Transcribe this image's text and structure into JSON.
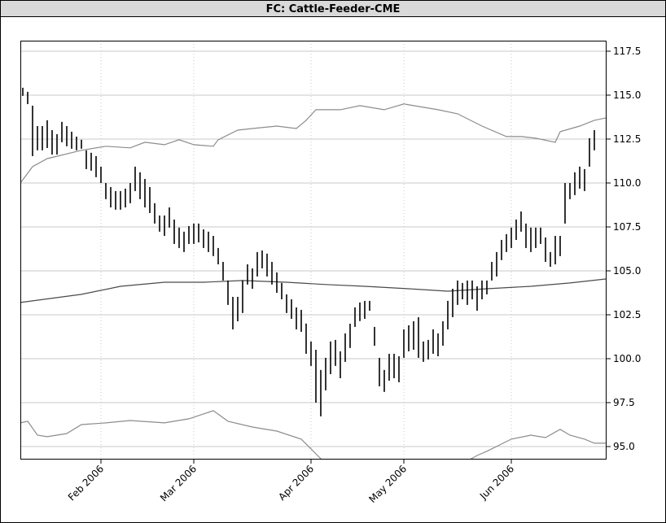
{
  "chart_data": {
    "type": "hilo",
    "title": "FC: Cattle-Feeder-CME",
    "x": [
      0,
      1,
      2,
      3,
      4,
      5,
      6,
      7,
      8,
      9,
      10,
      11,
      12,
      13,
      14,
      15,
      16,
      17,
      18,
      19,
      20,
      21,
      22,
      23,
      24,
      25,
      26,
      27,
      28,
      29,
      30,
      31,
      32,
      33,
      34,
      35,
      36,
      37,
      38,
      39,
      40,
      41,
      42,
      43,
      44,
      45,
      46,
      47,
      48,
      49,
      50,
      51,
      52,
      53,
      54,
      55,
      56,
      57,
      58,
      59,
      60,
      61,
      62,
      63,
      64,
      65,
      66,
      67,
      68,
      69,
      70,
      71,
      72,
      73,
      74,
      75,
      76,
      77,
      78,
      79,
      80,
      81,
      82,
      83,
      84,
      85,
      86,
      87,
      88,
      89,
      90,
      91,
      92,
      93,
      94,
      95,
      96,
      97,
      98,
      99,
      100,
      101,
      102,
      103,
      104,
      105,
      106,
      107,
      108,
      109,
      110,
      111,
      112,
      113,
      114,
      115,
      116,
      117
    ],
    "high": [
      115.42,
      115.19,
      114.4,
      113.24,
      113.24,
      113.57,
      113.01,
      112.78,
      113.48,
      113.24,
      112.92,
      112.64,
      112.46,
      111.86,
      111.72,
      111.53,
      110.93,
      110.0,
      109.77,
      109.54,
      109.54,
      109.68,
      110.0,
      110.93,
      110.61,
      110.23,
      109.77,
      108.85,
      108.15,
      108.15,
      108.61,
      107.92,
      107.46,
      107.23,
      107.55,
      107.69,
      107.69,
      107.36,
      107.23,
      106.99,
      106.3,
      105.51,
      104.45,
      103.52,
      103.52,
      104.45,
      105.37,
      105.14,
      106.07,
      106.16,
      105.98,
      105.51,
      104.91,
      104.31,
      103.66,
      103.38,
      102.92,
      102.78,
      102.0,
      100.98,
      100.51,
      99.36,
      100.05,
      100.98,
      101.07,
      100.42,
      101.44,
      101.99,
      102.92,
      103.2,
      103.29,
      103.29,
      101.81,
      100.05,
      99.36,
      100.28,
      100.28,
      100.14,
      101.67,
      101.9,
      102.13,
      102.36,
      100.98,
      101.07,
      101.67,
      101.44,
      102.13,
      103.29,
      103.98,
      104.45,
      104.31,
      104.45,
      104.45,
      104.12,
      104.45,
      104.45,
      105.51,
      106.07,
      106.76,
      107.09,
      107.46,
      107.92,
      108.38,
      107.69,
      107.46,
      107.46,
      107.46,
      106.9,
      106.07,
      106.99,
      106.99,
      110.0,
      110.0,
      110.61,
      110.93,
      110.79,
      112.55,
      113.01
    ],
    "low": [
      114.96,
      114.49,
      111.53,
      111.86,
      111.86,
      111.99,
      111.62,
      111.62,
      112.32,
      112.09,
      111.95,
      111.86,
      111.95,
      110.79,
      110.7,
      110.33,
      110.0,
      109.08,
      108.61,
      108.48,
      108.48,
      108.61,
      108.85,
      109.54,
      109.08,
      108.61,
      108.29,
      107.69,
      107.23,
      106.99,
      107.46,
      106.53,
      106.3,
      106.07,
      106.53,
      106.53,
      106.62,
      106.3,
      106.07,
      105.84,
      105.37,
      104.45,
      103.06,
      101.67,
      102.13,
      102.6,
      104.22,
      103.98,
      104.68,
      105.14,
      104.68,
      104.22,
      103.75,
      103.38,
      102.6,
      102.27,
      101.67,
      101.53,
      100.28,
      99.59,
      97.5,
      96.72,
      98.2,
      99.12,
      99.59,
      98.89,
      99.82,
      100.61,
      101.81,
      102.14,
      102.27,
      102.73,
      100.74,
      98.43,
      98.11,
      98.75,
      98.89,
      98.66,
      100.05,
      100.42,
      100.51,
      100.05,
      99.82,
      99.96,
      100.28,
      100.14,
      100.74,
      101.67,
      102.36,
      103.06,
      103.38,
      103.06,
      103.38,
      102.73,
      103.38,
      103.66,
      104.45,
      104.68,
      105.61,
      106.07,
      106.3,
      106.76,
      107.23,
      106.3,
      106.07,
      106.3,
      106.53,
      105.51,
      105.23,
      105.37,
      105.84,
      107.69,
      109.08,
      109.31,
      109.68,
      109.54,
      110.93,
      111.86
    ],
    "bar_color": "#000000",
    "lines": [
      {
        "color": "#8c8c8c",
        "x": [
          -0.5,
          2,
          5,
          12,
          17,
          22,
          25,
          29,
          32,
          35,
          39,
          40,
          44,
          47,
          52,
          56,
          58,
          60,
          65,
          69,
          74,
          78,
          80,
          85,
          89,
          94,
          99,
          102,
          105,
          109,
          110,
          114,
          117,
          119.5
        ],
        "values": [
          110.0,
          110.93,
          111.39,
          111.86,
          112.09,
          112.0,
          112.32,
          112.18,
          112.46,
          112.18,
          112.09,
          112.46,
          113.01,
          113.1,
          113.24,
          113.1,
          113.57,
          114.17,
          114.17,
          114.4,
          114.17,
          114.5,
          114.4,
          114.17,
          113.94,
          113.24,
          112.64,
          112.64,
          112.55,
          112.32,
          112.92,
          113.24,
          113.57,
          113.71
        ]
      },
      {
        "color": "#4a4a4a",
        "x": [
          -0.5,
          12,
          20,
          29,
          37,
          45,
          54,
          62,
          70,
          79,
          87,
          95,
          104,
          112,
          119.5
        ],
        "values": [
          103.2,
          103.66,
          104.12,
          104.35,
          104.35,
          104.45,
          104.35,
          104.22,
          104.12,
          103.98,
          103.84,
          103.98,
          104.12,
          104.31,
          104.54
        ]
      },
      {
        "color": "#8c8c8c",
        "x": [
          -0.5,
          1,
          3,
          5,
          9,
          12,
          17,
          22,
          29,
          34,
          39,
          42,
          47,
          52,
          57,
          60,
          62,
          70,
          79,
          87,
          93,
          95,
          100,
          104,
          107,
          110,
          112,
          115,
          117,
          119.5
        ],
        "values": [
          96.35,
          96.44,
          95.65,
          95.56,
          95.74,
          96.25,
          96.35,
          96.48,
          96.35,
          96.58,
          97.04,
          96.44,
          96.11,
          95.88,
          95.42,
          94.59,
          94.03,
          93.34,
          93.11,
          93.57,
          94.49,
          94.73,
          95.42,
          95.65,
          95.51,
          95.98,
          95.65,
          95.42,
          95.19,
          95.19
        ]
      }
    ],
    "xlim": [
      -0.5,
      119.5
    ],
    "xticks": [
      {
        "value": 16,
        "label": "Feb 2006"
      },
      {
        "value": 35,
        "label": "Mar 2006"
      },
      {
        "value": 59,
        "label": "Apr 2006"
      },
      {
        "value": 78,
        "label": "May 2006"
      },
      {
        "value": 100,
        "label": "Jun 2006"
      }
    ],
    "ylim": [
      94.26,
      118.1
    ],
    "yticks": [
      {
        "value": 95,
        "label": "95.0"
      },
      97.5,
      {
        "value": 100,
        "label": "100.0"
      },
      102.5,
      {
        "value": 105,
        "label": "105.0"
      },
      107.5,
      {
        "value": 110,
        "label": "110.0"
      },
      112.5,
      {
        "value": 115,
        "label": "115.0"
      },
      117.5
    ],
    "grid": true
  }
}
